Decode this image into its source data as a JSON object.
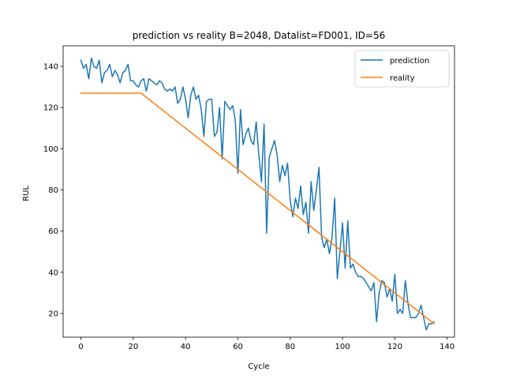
{
  "chart_data": {
    "type": "line",
    "title": "prediction vs reality B=2048, Datalist=FD001, ID=56",
    "xlabel": "Cycle",
    "ylabel": "RUL",
    "xlim": [
      -6.8,
      142.8
    ],
    "ylim": [
      8.5,
      150
    ],
    "xticks": [
      0,
      20,
      40,
      60,
      80,
      100,
      120,
      140
    ],
    "yticks": [
      20,
      40,
      60,
      80,
      100,
      120,
      140
    ],
    "grid": false,
    "legend_position": "top-right",
    "series": [
      {
        "name": "prediction",
        "color": "#1f77b4",
        "x": [
          0,
          1,
          2,
          3,
          4,
          5,
          6,
          7,
          8,
          9,
          10,
          11,
          12,
          13,
          14,
          15,
          16,
          17,
          18,
          19,
          20,
          21,
          22,
          23,
          24,
          25,
          26,
          27,
          28,
          29,
          30,
          31,
          32,
          33,
          34,
          35,
          36,
          37,
          38,
          39,
          40,
          41,
          42,
          43,
          44,
          45,
          46,
          47,
          48,
          49,
          50,
          51,
          52,
          53,
          54,
          55,
          56,
          57,
          58,
          59,
          60,
          61,
          62,
          63,
          64,
          65,
          66,
          67,
          68,
          69,
          70,
          71,
          72,
          73,
          74,
          75,
          76,
          77,
          78,
          79,
          80,
          81,
          82,
          83,
          84,
          85,
          86,
          87,
          88,
          89,
          90,
          91,
          92,
          93,
          94,
          95,
          96,
          97,
          98,
          99,
          100,
          101,
          102,
          103,
          104,
          105,
          106,
          107,
          108,
          109,
          110,
          111,
          112,
          113,
          114,
          115,
          116,
          117,
          118,
          119,
          120,
          121,
          122,
          123,
          124,
          125,
          126,
          127,
          128,
          129,
          130,
          131,
          132,
          133,
          134,
          135
        ],
        "values": [
          143,
          139,
          141,
          134,
          144,
          140,
          139,
          143,
          132,
          137,
          138,
          141,
          135,
          138,
          136,
          132,
          137,
          138,
          141,
          133,
          133,
          131,
          130,
          133,
          134,
          128,
          134,
          133,
          132,
          131,
          133,
          132,
          129,
          128,
          129,
          128,
          130,
          122,
          124,
          130,
          124,
          115,
          126,
          130,
          124,
          126,
          119,
          106,
          123,
          124,
          124,
          106,
          108,
          120,
          95,
          123,
          121,
          119,
          121,
          114,
          88,
          119,
          102,
          107,
          110,
          104,
          102,
          113,
          97,
          84,
          112,
          59,
          96,
          100,
          104,
          97,
          84,
          92,
          87,
          93,
          75,
          67,
          76,
          71,
          82,
          68,
          74,
          59,
          84,
          70,
          80,
          91,
          57,
          52,
          56,
          49,
          57,
          76,
          37,
          50,
          64,
          42,
          65,
          42,
          44,
          40,
          38,
          38,
          37,
          35,
          33,
          31,
          35,
          16,
          30,
          36,
          35,
          28,
          32,
          26,
          39,
          20,
          22,
          20,
          36,
          25,
          18,
          18,
          18,
          20,
          24,
          18,
          12,
          15,
          15,
          16
        ],
        "line_width": 1.5
      },
      {
        "name": "reality",
        "color": "#ff7f0e",
        "x": [
          0,
          23,
          135
        ],
        "values": [
          127,
          127,
          15
        ],
        "line_width": 1.5
      }
    ]
  }
}
